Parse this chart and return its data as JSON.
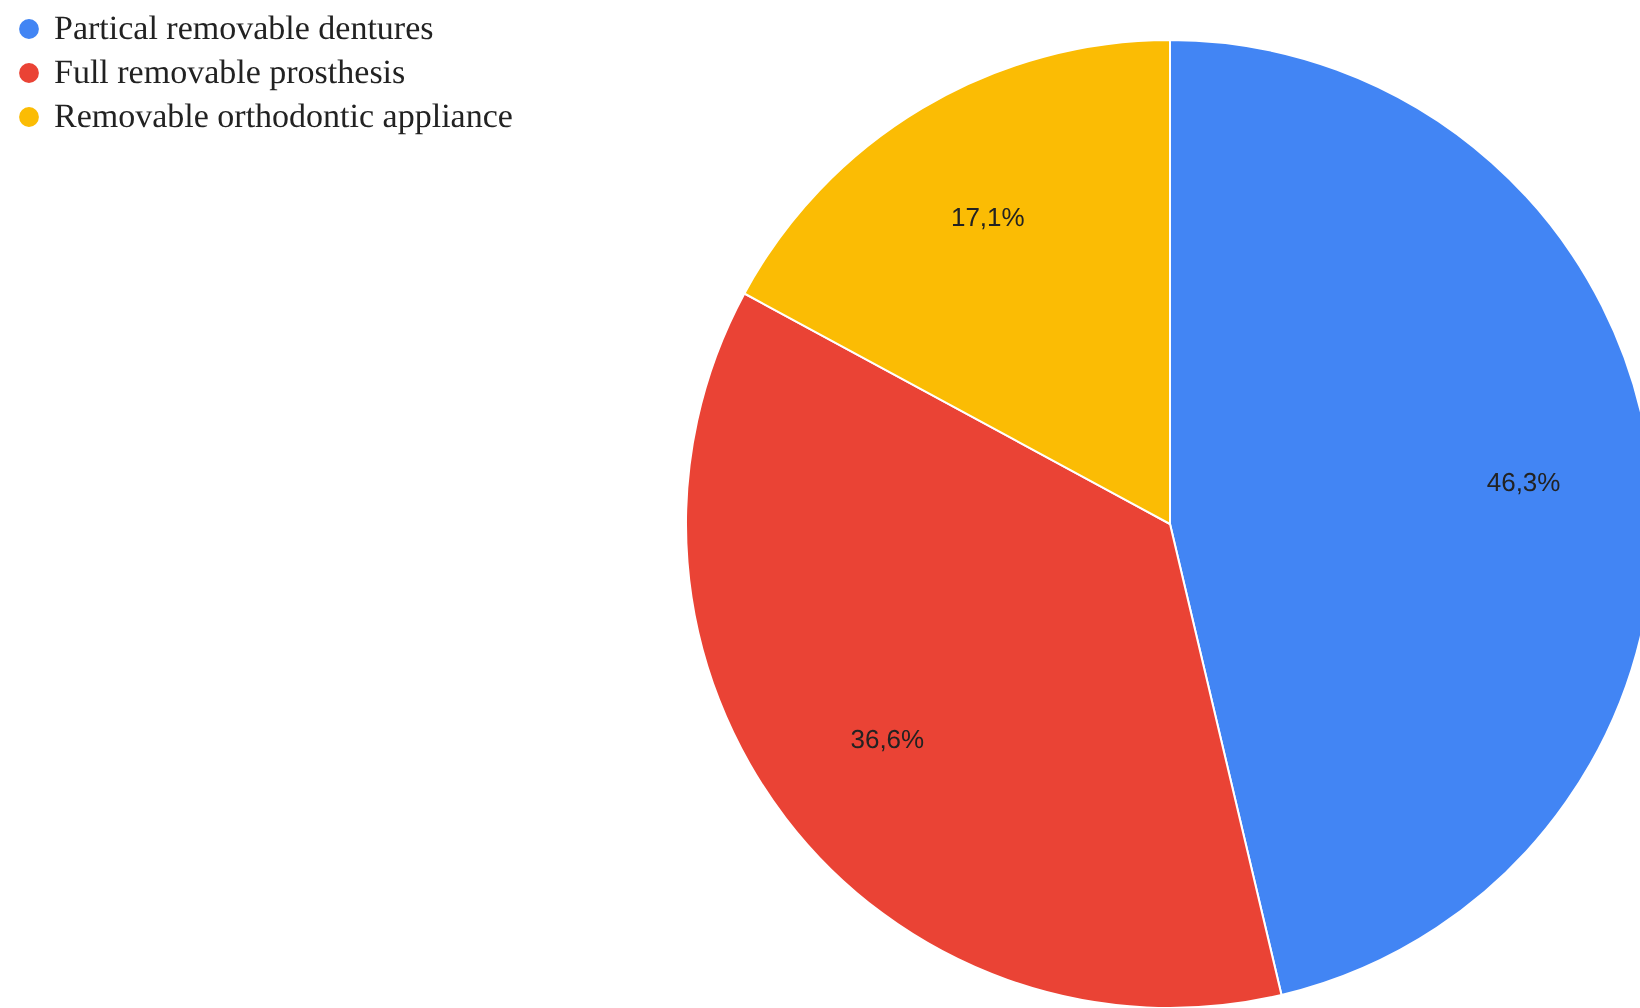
{
  "chart_data": {
    "type": "pie",
    "categories": [
      "Partical removable dentures",
      "Full removable prosthesis",
      "Removable orthodontic appliance"
    ],
    "values": [
      46.3,
      36.6,
      17.1
    ],
    "colors": [
      "#4285f4",
      "#ea4335",
      "#fbbc04"
    ],
    "value_labels": [
      "46,3%",
      "36,6%",
      "17,1%"
    ],
    "legend": "top left"
  }
}
